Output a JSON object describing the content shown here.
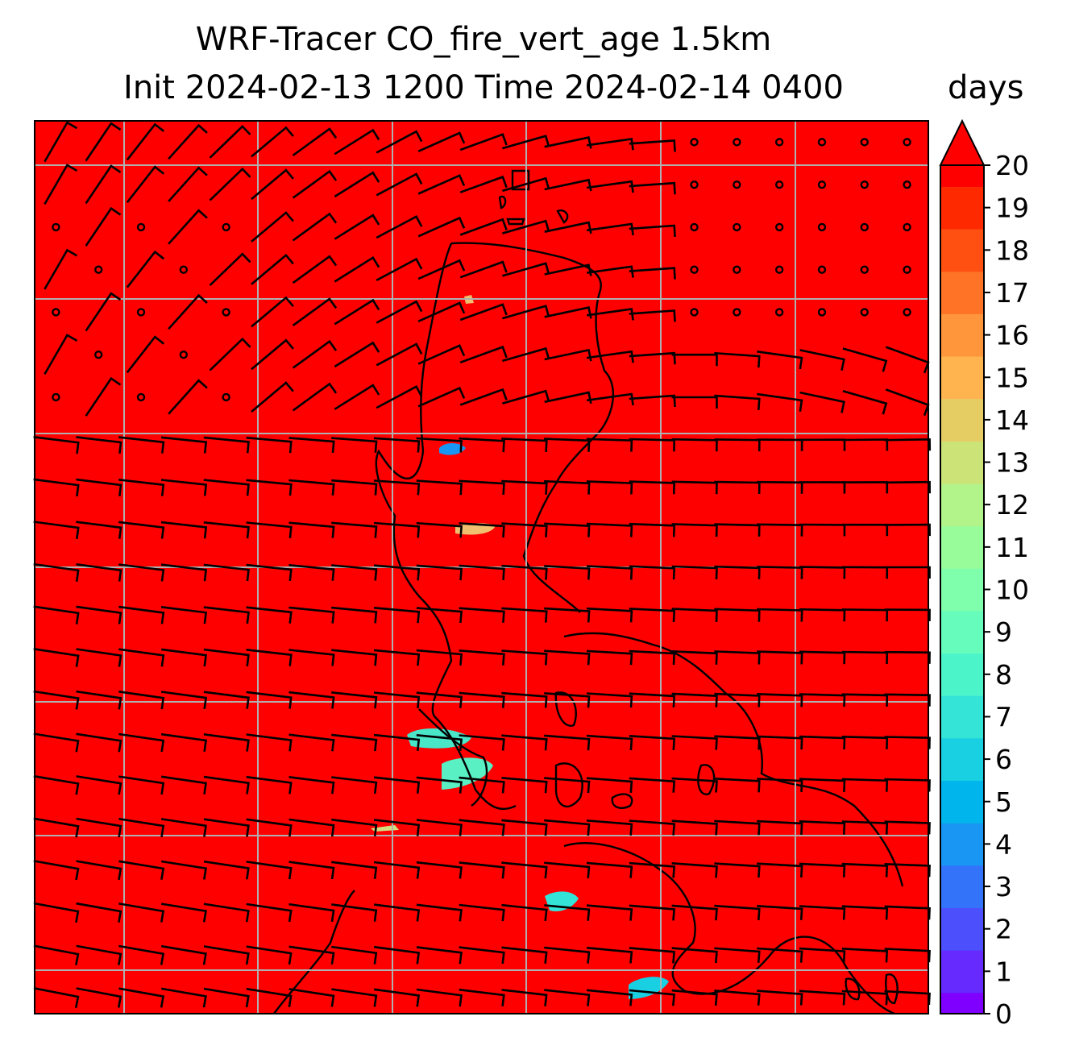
{
  "title": {
    "line1": "WRF-Tracer CO_fire_vert_age 1.5km",
    "line2": "Init 2024-02-13 1200 Time 2024-02-14 0400"
  },
  "colorbar": {
    "unit": "days",
    "ticks": [
      "0",
      "1",
      "2",
      "3",
      "4",
      "5",
      "6",
      "7",
      "8",
      "9",
      "10",
      "11",
      "12",
      "13",
      "14",
      "15",
      "16",
      "17",
      "18",
      "19",
      "20"
    ],
    "extend": "max",
    "colors": [
      "#7f00ff",
      "#6629fe",
      "#4c50fc",
      "#3373fa",
      "#1996f3",
      "#00b5eb",
      "#19cfe2",
      "#33e4d7",
      "#4cf4ca",
      "#66fcbb",
      "#7ffeac",
      "#98fc9b",
      "#b2f38a",
      "#cce377",
      "#e5cd64",
      "#ffb450",
      "#ff963c",
      "#ff7326",
      "#ff5011",
      "#ff2900",
      "#ff0000"
    ]
  },
  "map": {
    "background_color": "#ff0000",
    "fire_plumes_color": "#7ffeac"
  }
}
